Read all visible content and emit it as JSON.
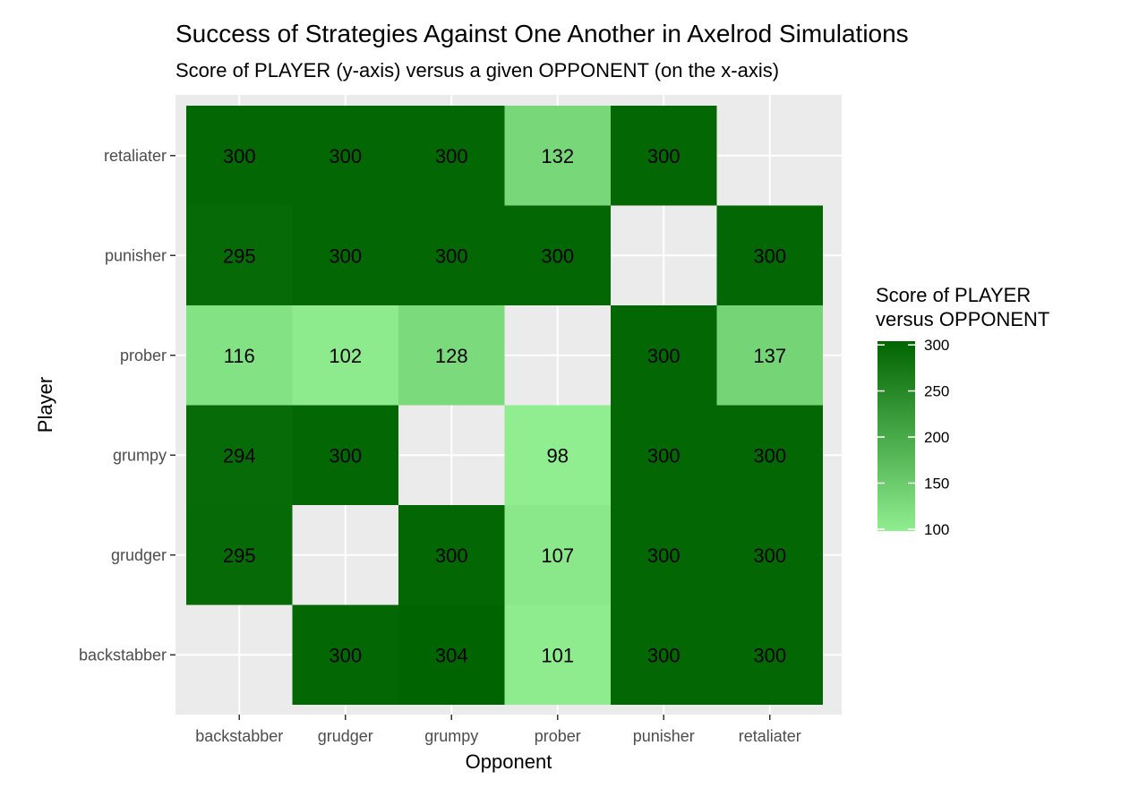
{
  "chart_data": {
    "type": "heatmap",
    "title": "Success of Strategies Against One Another in Axelrod Simulations",
    "subtitle": "Score of PLAYER (y-axis) versus a given OPPONENT (on the x-axis)",
    "xlabel": "Opponent",
    "ylabel": "Player",
    "x_categories": [
      "backstabber",
      "grudger",
      "grumpy",
      "prober",
      "punisher",
      "retaliater"
    ],
    "y_categories": [
      "backstabber",
      "grudger",
      "grumpy",
      "prober",
      "punisher",
      "retaliater"
    ],
    "values": [
      [
        null,
        300,
        304,
        101,
        300,
        300
      ],
      [
        295,
        null,
        300,
        107,
        300,
        300
      ],
      [
        294,
        300,
        null,
        98,
        300,
        300
      ],
      [
        116,
        102,
        128,
        null,
        300,
        137
      ],
      [
        295,
        300,
        300,
        300,
        null,
        300
      ],
      [
        300,
        300,
        300,
        132,
        300,
        null
      ]
    ],
    "legend": {
      "title_lines": [
        "Score of PLAYER",
        "versus OPPONENT"
      ],
      "ticks": [
        100,
        150,
        200,
        250,
        300
      ],
      "placement": "right"
    },
    "color_scale": {
      "low_color": "#90ee90",
      "high_color": "#006400",
      "min": 98,
      "max": 304
    },
    "panel_background": "#ebebeb",
    "grid_color": "#ffffff",
    "grid": true
  }
}
